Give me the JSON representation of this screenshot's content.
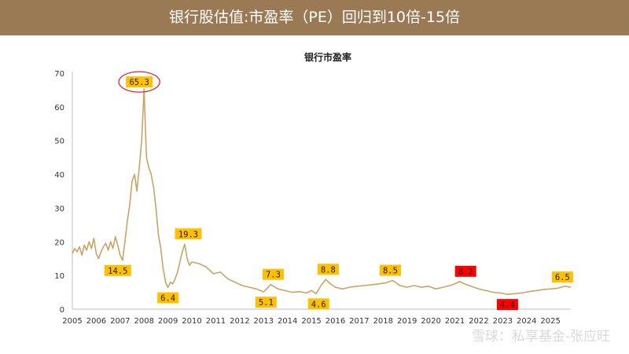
{
  "header": {
    "title": "银行股估值:市盈率（PE）回归到10倍-15倍"
  },
  "watermark": {
    "text": "雪球：私享基金-张应旺"
  },
  "colors": {
    "header_bg": "#9a7a55",
    "line": "#c9a464",
    "label_bg": "#ffc000",
    "label_bg_red": "#ff0000",
    "circle": "#e0242c"
  },
  "chart_data": {
    "type": "line",
    "title": "银行市盈率",
    "xlabel": "",
    "ylabel": "",
    "xlim": [
      2005.0,
      2025.85
    ],
    "ylim": [
      0,
      70
    ],
    "yticks": [
      0,
      10,
      20,
      30,
      40,
      50,
      60,
      70
    ],
    "xticks": [
      "2005",
      "2006",
      "2007",
      "2008",
      "2009",
      "2010",
      "2011",
      "2012",
      "2013",
      "2014",
      "2015",
      "2016",
      "2017",
      "2018",
      "2019",
      "2020",
      "2021",
      "2022",
      "2023",
      "2024",
      "2025"
    ],
    "grid": false,
    "legend": "none",
    "series": [
      {
        "x": [
          2005.0,
          2005.1,
          2005.2,
          2005.3,
          2005.4,
          2005.5,
          2005.6,
          2005.7,
          2005.8,
          2005.9,
          2006.0,
          2006.1,
          2006.2,
          2006.3,
          2006.4,
          2006.5,
          2006.6,
          2006.7,
          2006.8,
          2006.9,
          2007.0,
          2007.1,
          2007.2,
          2007.3,
          2007.4,
          2007.5,
          2007.6,
          2007.7,
          2007.8,
          2007.9,
          2008.0,
          2008.1,
          2008.2,
          2008.3,
          2008.4,
          2008.5,
          2008.6,
          2008.7,
          2008.8,
          2008.9,
          2009.0,
          2009.1,
          2009.2,
          2009.3,
          2009.4,
          2009.5,
          2009.6,
          2009.7,
          2009.8,
          2009.9,
          2010.0,
          2010.3,
          2010.6,
          2010.9,
          2011.2,
          2011.5,
          2011.8,
          2012.1,
          2012.4,
          2012.7,
          2013.0,
          2013.3,
          2013.6,
          2013.9,
          2014.2,
          2014.5,
          2014.8,
          2015.0,
          2015.2,
          2015.4,
          2015.6,
          2015.8,
          2016.0,
          2016.3,
          2016.6,
          2016.9,
          2017.2,
          2017.5,
          2017.8,
          2018.1,
          2018.4,
          2018.7,
          2019.0,
          2019.3,
          2019.6,
          2019.9,
          2020.2,
          2020.5,
          2020.8,
          2021.0,
          2021.2,
          2021.4,
          2021.6,
          2021.8,
          2022.0,
          2022.3,
          2022.6,
          2022.9,
          2023.2,
          2023.5,
          2023.8,
          2024.1,
          2024.4,
          2024.7,
          2025.0,
          2025.3,
          2025.6,
          2025.85
        ],
        "values": [
          16.5,
          18.0,
          17.0,
          18.5,
          16.0,
          19.0,
          17.5,
          20.0,
          18.0,
          21.0,
          16.5,
          15.0,
          17.0,
          18.5,
          19.5,
          17.5,
          20.0,
          18.0,
          21.5,
          19.0,
          16.0,
          14.5,
          20.0,
          26.0,
          31.0,
          38.0,
          40.0,
          35.0,
          42.0,
          50.0,
          65.3,
          45.0,
          42.0,
          40.0,
          36.0,
          30.0,
          22.0,
          18.0,
          12.0,
          8.0,
          6.4,
          8.0,
          7.5,
          9.0,
          11.0,
          14.0,
          17.0,
          19.3,
          15.0,
          13.0,
          14.0,
          13.5,
          12.5,
          10.5,
          11.0,
          9.0,
          8.0,
          7.0,
          6.5,
          6.0,
          5.1,
          7.3,
          6.0,
          5.5,
          5.0,
          5.2,
          4.8,
          5.5,
          4.6,
          7.0,
          8.8,
          7.5,
          6.5,
          6.0,
          6.5,
          6.8,
          7.0,
          7.2,
          7.5,
          7.8,
          8.5,
          7.0,
          6.5,
          7.0,
          6.5,
          6.8,
          6.0,
          6.5,
          7.0,
          7.5,
          8.2,
          7.5,
          7.0,
          6.5,
          6.0,
          5.5,
          5.0,
          4.8,
          4.4,
          4.6,
          4.8,
          5.2,
          5.5,
          5.8,
          6.0,
          6.2,
          6.8,
          6.5
        ]
      }
    ],
    "annotations": [
      {
        "x": 2007.8,
        "y": 65.3,
        "text": "65.3",
        "style": "yellow",
        "circled": true
      },
      {
        "x": 2006.9,
        "y": 14.5,
        "text": "14.5",
        "style": "yellow"
      },
      {
        "x": 2009.0,
        "y": 6.4,
        "text": "6.4",
        "style": "yellow"
      },
      {
        "x": 2009.85,
        "y": 19.3,
        "text": "19.3",
        "style": "yellow"
      },
      {
        "x": 2013.1,
        "y": 5.1,
        "text": "5.1",
        "style": "yellow"
      },
      {
        "x": 2013.4,
        "y": 7.3,
        "text": "7.3",
        "style": "yellow"
      },
      {
        "x": 2015.3,
        "y": 4.6,
        "text": "4.6",
        "style": "yellow"
      },
      {
        "x": 2015.7,
        "y": 8.8,
        "text": "8.8",
        "style": "yellow"
      },
      {
        "x": 2018.3,
        "y": 8.5,
        "text": "8.5",
        "style": "yellow"
      },
      {
        "x": 2021.45,
        "y": 8.2,
        "text": "8.2",
        "style": "red"
      },
      {
        "x": 2023.2,
        "y": 4.4,
        "text": "4.4",
        "style": "red"
      },
      {
        "x": 2025.5,
        "y": 6.5,
        "text": "6.5",
        "style": "yellow"
      }
    ]
  }
}
